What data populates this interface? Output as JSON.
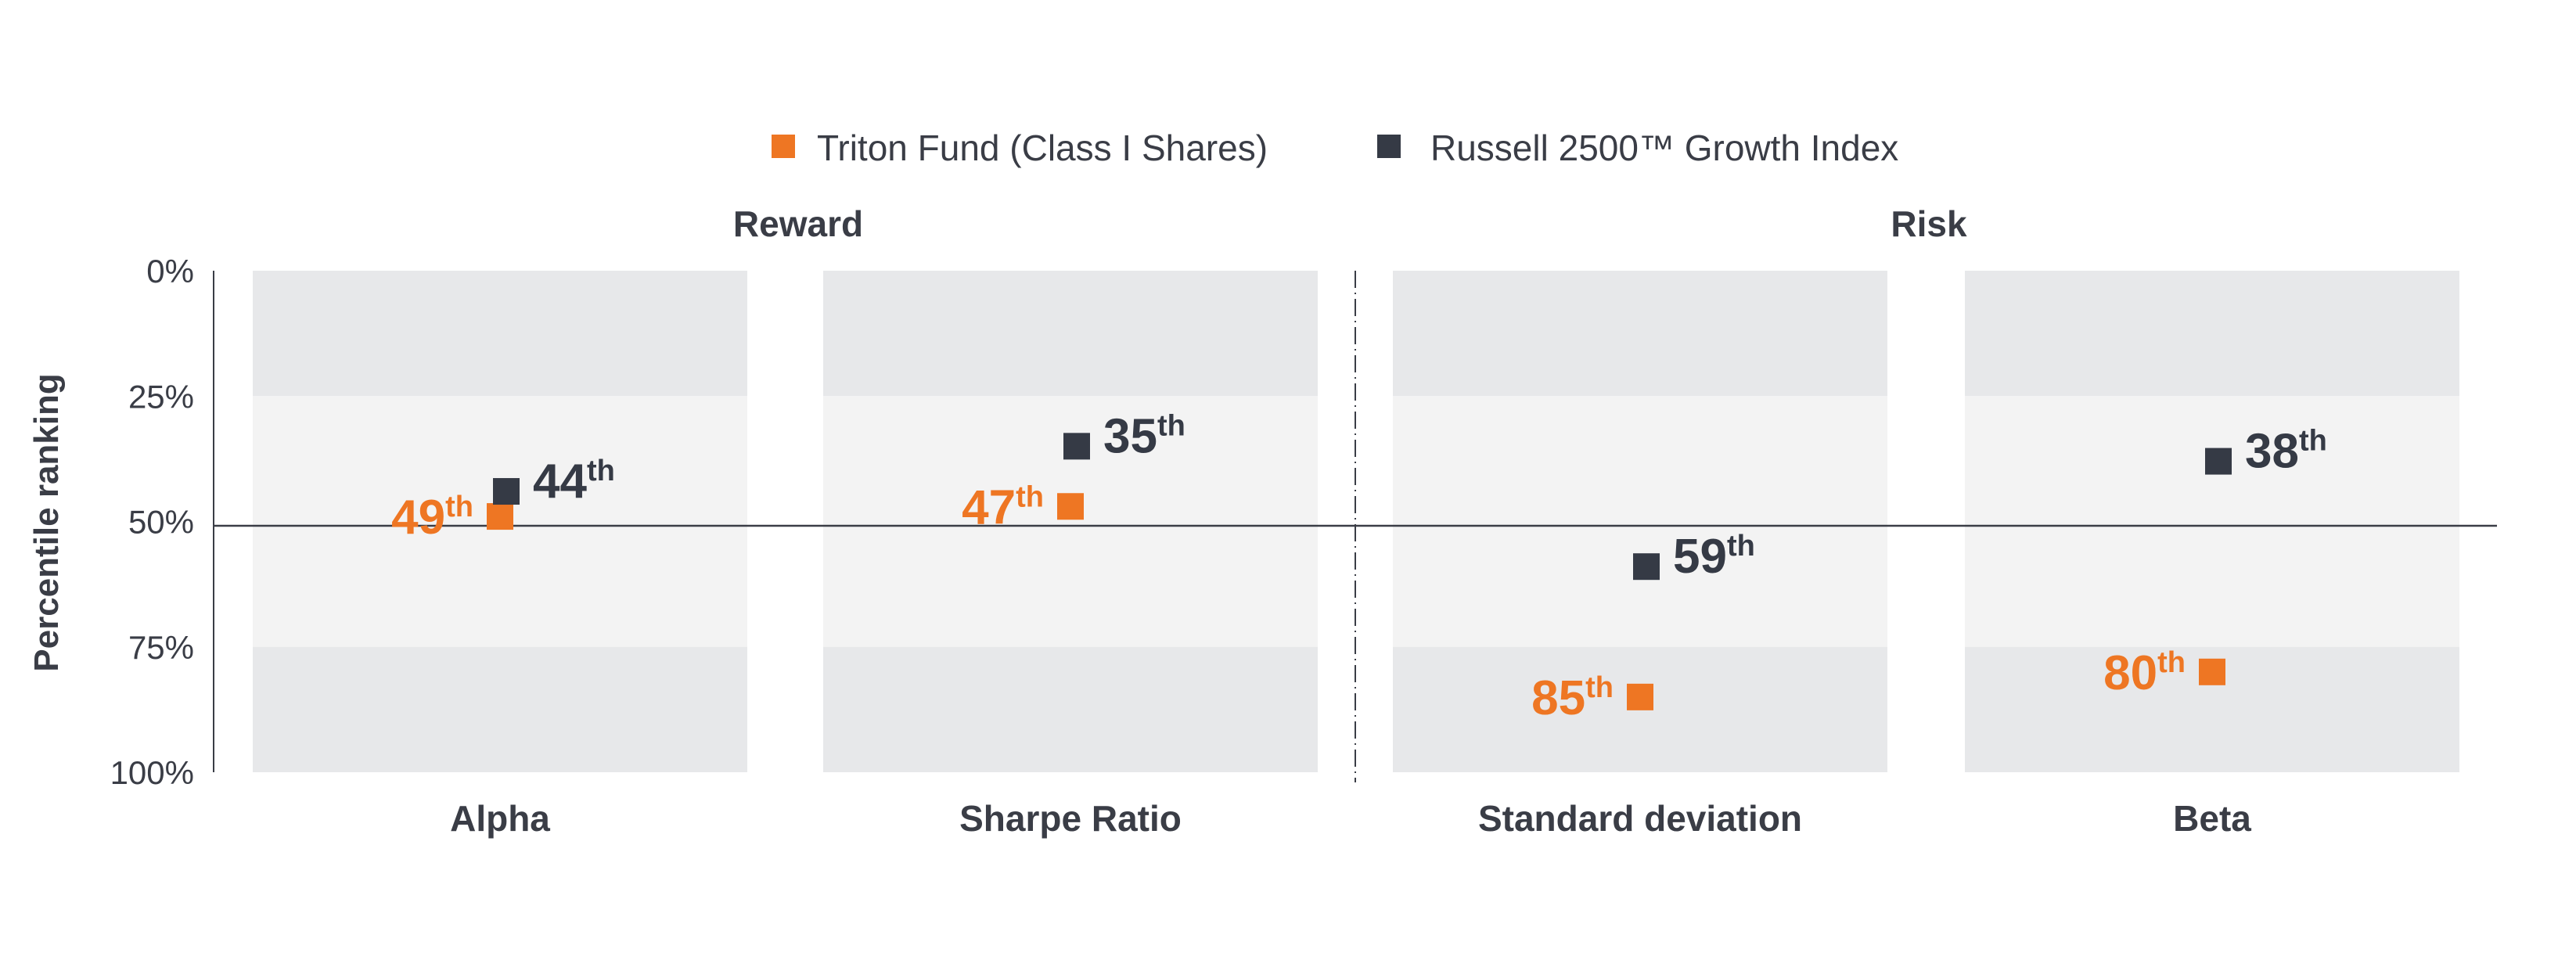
{
  "chart_data": {
    "type": "scatter",
    "ylabel": "Percentile ranking",
    "ylim": [
      0,
      100
    ],
    "y_reversed": true,
    "y_ticks": [
      "0%",
      "25%",
      "50%",
      "75%",
      "100%"
    ],
    "reference_line": 50,
    "bands": [
      {
        "from": 0,
        "to": 25,
        "color": "#e7e8ea"
      },
      {
        "from": 25,
        "to": 75,
        "color": "#f3f3f3"
      },
      {
        "from": 75,
        "to": 100,
        "color": "#e7e8ea"
      }
    ],
    "groups": [
      {
        "label": "Reward",
        "categories": [
          "Alpha",
          "Sharpe Ratio"
        ]
      },
      {
        "label": "Risk",
        "categories": [
          "Standard deviation",
          "Beta"
        ]
      }
    ],
    "categories": [
      "Alpha",
      "Sharpe Ratio",
      "Standard deviation",
      "Beta"
    ],
    "legend_position": "top",
    "series": [
      {
        "name": "Triton Fund (Class I Shares)",
        "color": "#ee7623",
        "values": [
          49,
          47,
          85,
          80
        ],
        "labels": [
          "49",
          "47",
          "85",
          "80"
        ],
        "label_side": "left"
      },
      {
        "name": "Russell 2500™ Growth Index",
        "color": "#353a45",
        "values": [
          44,
          35,
          59,
          38
        ],
        "labels": [
          "44",
          "35",
          "59",
          "38"
        ],
        "label_side": "right"
      }
    ],
    "ordinal_suffix": "th"
  }
}
